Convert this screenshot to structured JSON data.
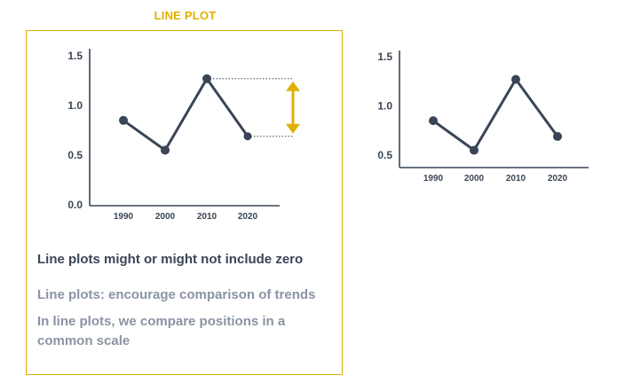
{
  "colors": {
    "accent": "#e0b000",
    "dark": "#3a4556",
    "muted": "#8a94a3",
    "axis": "#3a4556"
  },
  "header": {
    "title": "LINE PLOT"
  },
  "notes": {
    "main": "Line plots might or might not include zero",
    "point1": "Line plots: encourage comparison of trends",
    "point2": "In line plots, we compare positions in a common scale"
  },
  "chart_data": [
    {
      "type": "line",
      "x": [
        "1990",
        "2000",
        "2010",
        "2020"
      ],
      "values": [
        0.85,
        0.55,
        1.27,
        0.69
      ],
      "yticks": [
        "0.0",
        "0.5",
        "1.0",
        "1.5"
      ],
      "ylim": [
        0,
        1.5
      ],
      "includes_zero": true,
      "annotation": "double-headed arrow marking the difference between the 2010 and 2020 values"
    },
    {
      "type": "line",
      "x": [
        "1990",
        "2000",
        "2010",
        "2020"
      ],
      "values": [
        0.85,
        0.55,
        1.27,
        0.69
      ],
      "yticks": [
        "0.5",
        "1.0",
        "1.5"
      ],
      "ylim": [
        0.4,
        1.5
      ],
      "includes_zero": false
    }
  ]
}
